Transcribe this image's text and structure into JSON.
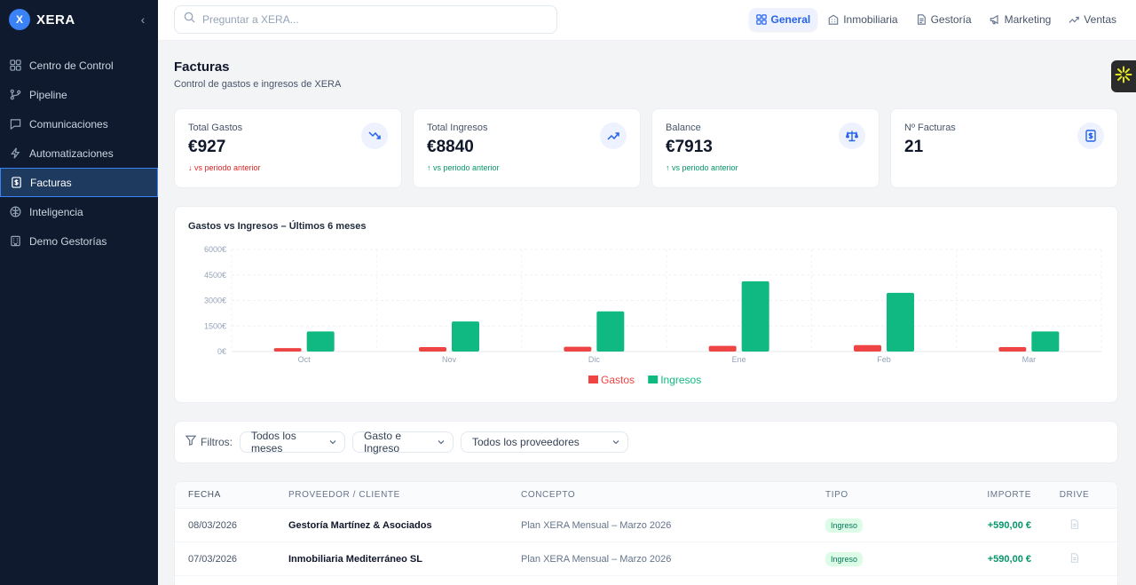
{
  "brand": {
    "logo_letter": "X",
    "name": "XERA",
    "collapse_glyph": "‹"
  },
  "sidebar": {
    "items": [
      {
        "label": "Centro de Control",
        "icon": "dashboard-icon"
      },
      {
        "label": "Pipeline",
        "icon": "git-branch-icon"
      },
      {
        "label": "Comunicaciones",
        "icon": "message-icon"
      },
      {
        "label": "Automatizaciones",
        "icon": "lightning-icon"
      },
      {
        "label": "Facturas",
        "icon": "receipt-icon",
        "active": true
      },
      {
        "label": "Inteligencia",
        "icon": "brain-icon"
      },
      {
        "label": "Demo Gestorías",
        "icon": "building-icon"
      }
    ]
  },
  "search": {
    "placeholder": "Preguntar a XERA..."
  },
  "tabs": [
    {
      "label": "General",
      "icon": "grid-icon",
      "active": true
    },
    {
      "label": "Inmobiliaria",
      "icon": "building-icon"
    },
    {
      "label": "Gestoría",
      "icon": "document-icon"
    },
    {
      "label": "Marketing",
      "icon": "megaphone-icon"
    },
    {
      "label": "Ventas",
      "icon": "trending-up-icon"
    }
  ],
  "page": {
    "title": "Facturas",
    "subtitle": "Control de gastos e ingresos de XERA"
  },
  "cards": [
    {
      "label": "Total Gastos",
      "value": "€927",
      "trend": "↓ vs periodo anterior",
      "trend_dir": "down",
      "icon": "trending-down-icon"
    },
    {
      "label": "Total Ingresos",
      "value": "€8840",
      "trend": "↑ vs periodo anterior",
      "trend_dir": "up",
      "icon": "trending-up-icon"
    },
    {
      "label": "Balance",
      "value": "€7913",
      "trend": "↑ vs periodo anterior",
      "trend_dir": "up",
      "icon": "scale-icon"
    },
    {
      "label": "Nº Facturas",
      "value": "21",
      "trend": "",
      "trend_dir": "",
      "icon": "receipt-icon"
    }
  ],
  "chart_data": {
    "type": "bar",
    "title": "Gastos vs Ingresos – Últimos 6 meses",
    "categories": [
      "Oct",
      "Nov",
      "Dic",
      "Ene",
      "Feb",
      "Mar"
    ],
    "series": [
      {
        "name": "Gastos",
        "color": "#ef4444",
        "values": [
          200,
          260,
          280,
          330,
          380,
          260
        ]
      },
      {
        "name": "Ingresos",
        "color": "#10b981",
        "values": [
          1180,
          1770,
          2360,
          4130,
          3450,
          1180
        ]
      }
    ],
    "yticks": [
      "0€",
      "1500€",
      "3000€",
      "4500€",
      "6000€"
    ],
    "ylim": [
      0,
      6000
    ],
    "grid": true,
    "legend_position": "bottom-center"
  },
  "filters": {
    "label": "Filtros:",
    "selects": [
      "Todos los meses",
      "Gasto e Ingreso",
      "Todos los proveedores"
    ]
  },
  "table": {
    "headers": [
      "FECHA",
      "PROVEEDOR / CLIENTE",
      "CONCEPTO",
      "TIPO",
      "IMPORTE",
      "DRIVE"
    ],
    "rows": [
      {
        "fecha": "08/03/2026",
        "proveedor": "Gestoría Martínez & Asociados",
        "concepto": "Plan XERA Mensual – Marzo 2026",
        "tipo": "Ingreso",
        "importe": "+590,00 €"
      },
      {
        "fecha": "07/03/2026",
        "proveedor": "Inmobiliaria Mediterráneo SL",
        "concepto": "Plan XERA Mensual – Marzo 2026",
        "tipo": "Ingreso",
        "importe": "+590,00 €"
      }
    ]
  }
}
